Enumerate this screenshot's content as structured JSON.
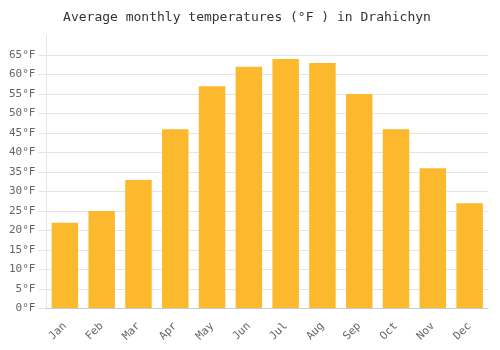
{
  "chart_data": {
    "type": "bar",
    "title": "Average monthly temperatures (°F ) in Drahichyn",
    "categories": [
      "Jan",
      "Feb",
      "Mar",
      "Apr",
      "May",
      "Jun",
      "Jul",
      "Aug",
      "Sep",
      "Oct",
      "Nov",
      "Dec"
    ],
    "values": [
      22,
      25,
      33,
      46,
      57,
      62,
      64,
      63,
      55,
      46,
      36,
      27
    ],
    "color": "#FDB92E",
    "ylim": [
      0,
      70
    ],
    "yticks": [
      {
        "value": 0,
        "label": "0°F"
      },
      {
        "value": 5,
        "label": "5°F"
      },
      {
        "value": 10,
        "label": "10°F"
      },
      {
        "value": 15,
        "label": "15°F"
      },
      {
        "value": 20,
        "label": "20°F"
      },
      {
        "value": 25,
        "label": "25°F"
      },
      {
        "value": 30,
        "label": "30°F"
      },
      {
        "value": 35,
        "label": "35°F"
      },
      {
        "value": 40,
        "label": "40°F"
      },
      {
        "value": 45,
        "label": "45°F"
      },
      {
        "value": 50,
        "label": "50°F"
      },
      {
        "value": 55,
        "label": "55°F"
      },
      {
        "value": 60,
        "label": "60°F"
      },
      {
        "value": 65,
        "label": "65°F"
      }
    ],
    "grid": true
  }
}
